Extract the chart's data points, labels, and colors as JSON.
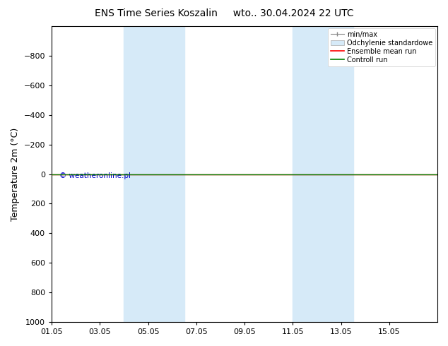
{
  "title": "ENS Time Series Koszalin",
  "subtitle": "wto.. 30.04.2024 22 UTC",
  "xlabel_ticks": [
    "01.05",
    "03.05",
    "05.05",
    "07.05",
    "09.05",
    "11.05",
    "13.05",
    "15.05"
  ],
  "ylabel": "Temperature 2m (°C)",
  "ylim_bottom": -1000,
  "ylim_top": 1000,
  "yticks": [
    -800,
    -600,
    -400,
    -200,
    0,
    200,
    400,
    600,
    800,
    1000
  ],
  "xlim": [
    0,
    16
  ],
  "xtick_positions": [
    0,
    2,
    4,
    6,
    8,
    10,
    12,
    14
  ],
  "shaded_regions": [
    {
      "xmin": 3.0,
      "xmax": 5.5,
      "color": "#d6eaf8"
    },
    {
      "xmin": 10.0,
      "xmax": 12.5,
      "color": "#d6eaf8"
    }
  ],
  "horizontal_line_y": 0,
  "line_color_green": "#008000",
  "line_color_red": "#ff0000",
  "watermark_text": "© weatheronline.pl",
  "watermark_color": "#0000cc",
  "legend_labels": [
    "min/max",
    "Odchylenie standardowe",
    "Ensemble mean run",
    "Controll run"
  ],
  "background_color": "#ffffff",
  "title_fontsize": 10,
  "axis_fontsize": 8,
  "ylabel_fontsize": 9
}
